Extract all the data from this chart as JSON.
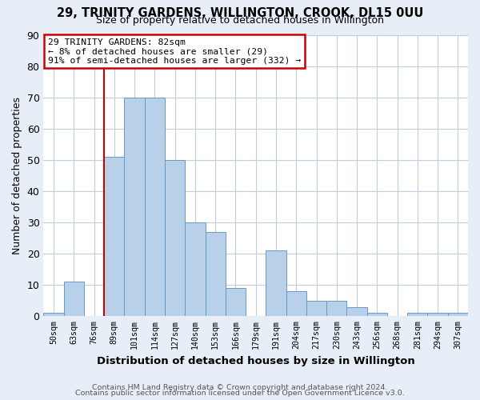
{
  "title": "29, TRINITY GARDENS, WILLINGTON, CROOK, DL15 0UU",
  "subtitle": "Size of property relative to detached houses in Willington",
  "xlabel": "Distribution of detached houses by size in Willington",
  "ylabel": "Number of detached properties",
  "bin_labels": [
    "50sqm",
    "63sqm",
    "76sqm",
    "89sqm",
    "101sqm",
    "114sqm",
    "127sqm",
    "140sqm",
    "153sqm",
    "166sqm",
    "179sqm",
    "191sqm",
    "204sqm",
    "217sqm",
    "230sqm",
    "243sqm",
    "256sqm",
    "268sqm",
    "281sqm",
    "294sqm",
    "307sqm"
  ],
  "bar_values": [
    1,
    11,
    0,
    51,
    70,
    70,
    50,
    30,
    27,
    9,
    0,
    21,
    8,
    5,
    5,
    3,
    1,
    0,
    1,
    1,
    1
  ],
  "bar_color": "#b8d0e8",
  "bar_edgecolor": "#6699cc",
  "ylim": [
    0,
    90
  ],
  "yticks": [
    0,
    10,
    20,
    30,
    40,
    50,
    60,
    70,
    80,
    90
  ],
  "vline_color": "#cc0000",
  "annotation_title": "29 TRINITY GARDENS: 82sqm",
  "annotation_line1": "← 8% of detached houses are smaller (29)",
  "annotation_line2": "91% of semi-detached houses are larger (332) →",
  "annotation_box_edgecolor": "#cc0000",
  "footer1": "Contains HM Land Registry data © Crown copyright and database right 2024.",
  "footer2": "Contains public sector information licensed under the Open Government Licence v3.0.",
  "background_color": "#e8eef8",
  "plot_background": "#ffffff",
  "grid_color": "#c0cce0"
}
